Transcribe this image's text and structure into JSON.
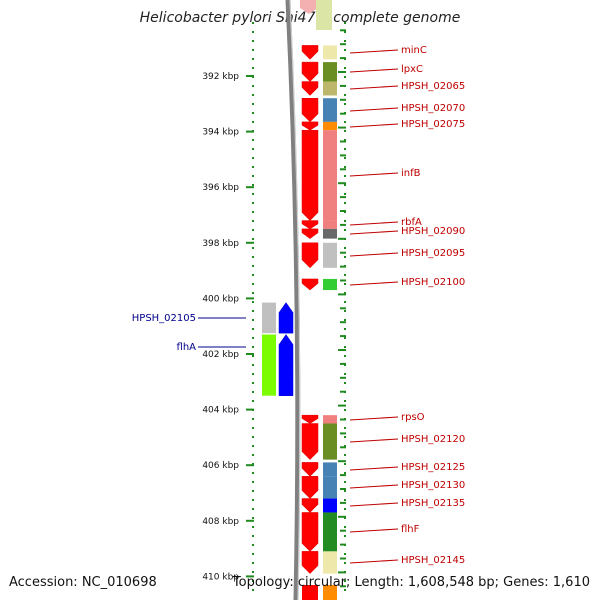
{
  "title": "Helicobacter pylori Shi470, complete genome",
  "footer": {
    "accession": "Accession: NC_010698",
    "summary": "Topology: circular; Length: 1,608,548 bp; Genes: 1,610"
  },
  "axis": {
    "ticks": [
      {
        "kbp": 392,
        "label": "392 kbp"
      },
      {
        "kbp": 394,
        "label": "394 kbp"
      },
      {
        "kbp": 396,
        "label": "396 kbp"
      },
      {
        "kbp": 398,
        "label": "398 kbp"
      },
      {
        "kbp": 400,
        "label": "400 kbp"
      },
      {
        "kbp": 402,
        "label": "402 kbp"
      },
      {
        "kbp": 404,
        "label": "404 kbp"
      },
      {
        "kbp": 406,
        "label": "406 kbp"
      },
      {
        "kbp": 408,
        "label": "408 kbp"
      },
      {
        "kbp": 410,
        "label": "410 kbp"
      }
    ]
  },
  "genes_forward": [
    {
      "label": "minC",
      "start": 390.9,
      "end": 391.4,
      "cog": "#eee8aa"
    },
    {
      "label": "lpxC",
      "start": 391.5,
      "end": 392.2,
      "cog": "#6b8e23"
    },
    {
      "label": "HPSH_02065",
      "start": 392.2,
      "end": 392.7,
      "cog": "#bdb76b"
    },
    {
      "label": "HPSH_02070",
      "start": 392.8,
      "end": 393.65,
      "cog": "#4682b4"
    },
    {
      "label": "HPSH_02075",
      "start": 393.65,
      "end": 393.95,
      "cog": "#ff8c00"
    },
    {
      "label": "infB",
      "start": 393.95,
      "end": 397.2,
      "cog": "#f08080"
    },
    {
      "label": "rbfA",
      "start": 397.2,
      "end": 397.5,
      "cog": "#f08080"
    },
    {
      "label": "HPSH_02090",
      "start": 397.5,
      "end": 397.85,
      "cog": "#696969"
    },
    {
      "label": "HPSH_02095",
      "start": 398.0,
      "end": 398.9,
      "cog": "#c0c0c0"
    },
    {
      "label": "HPSH_02100",
      "start": 399.3,
      "end": 399.7,
      "cog": "#32cd32"
    },
    {
      "label": "rpsO",
      "start": 404.2,
      "end": 404.5,
      "cog": "#f08080"
    },
    {
      "label": "HPSH_02120",
      "start": 404.5,
      "end": 405.8,
      "cog": "#6b8e23"
    },
    {
      "label": "HPSH_02125",
      "start": 405.9,
      "end": 406.4,
      "cog": "#4682b4"
    },
    {
      "label": "HPSH_02130",
      "start": 406.4,
      "end": 407.2,
      "cog": "#4682b4"
    },
    {
      "label": "HPSH_02135",
      "start": 407.2,
      "end": 407.7,
      "cog": "#0000ff"
    },
    {
      "label": "flhF",
      "start": 407.7,
      "end": 409.1,
      "cog": "#228b22"
    },
    {
      "label": "HPSH_02145",
      "start": 409.1,
      "end": 409.9,
      "cog": "#eee8aa"
    }
  ],
  "genes_reverse": [
    {
      "label": "HPSH_02105",
      "start": 400.15,
      "end": 401.25,
      "cog": "#c0c0c0"
    },
    {
      "label": "flhA",
      "start": 401.3,
      "end": 403.5,
      "cog": "#7cfc00"
    }
  ]
}
